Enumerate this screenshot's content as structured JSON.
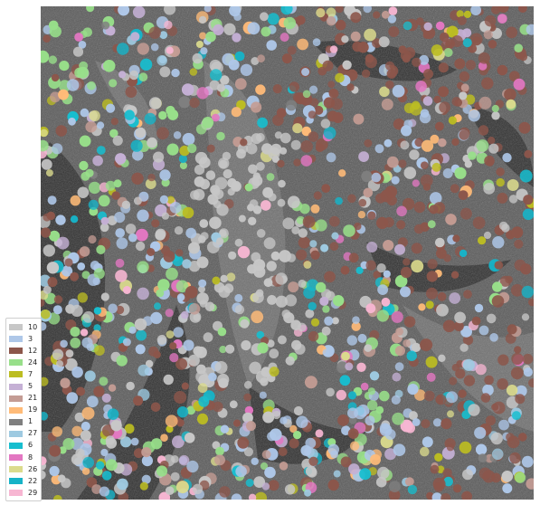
{
  "figure": {
    "image": "segmented tissue micrograph",
    "legend": {
      "items": [
        {
          "label": "10",
          "color": "#c7c7c7"
        },
        {
          "label": "3",
          "color": "#aec7e8"
        },
        {
          "label": "12",
          "color": "#8c564b"
        },
        {
          "label": "24",
          "color": "#98df8a"
        },
        {
          "label": "7",
          "color": "#bcbd22"
        },
        {
          "label": "5",
          "color": "#c5b0d5"
        },
        {
          "label": "21",
          "color": "#c49c94"
        },
        {
          "label": "19",
          "color": "#ffbb78"
        },
        {
          "label": "1",
          "color": "#7f7f7f"
        },
        {
          "label": "27",
          "color": "#9ecae1"
        },
        {
          "label": "6",
          "color": "#17becf"
        },
        {
          "label": "8",
          "color": "#e377c2"
        },
        {
          "label": "26",
          "color": "#dbdb8d"
        },
        {
          "label": "22",
          "color": "#17b3c7"
        },
        {
          "label": "29",
          "color": "#f7b6d2"
        }
      ]
    }
  }
}
